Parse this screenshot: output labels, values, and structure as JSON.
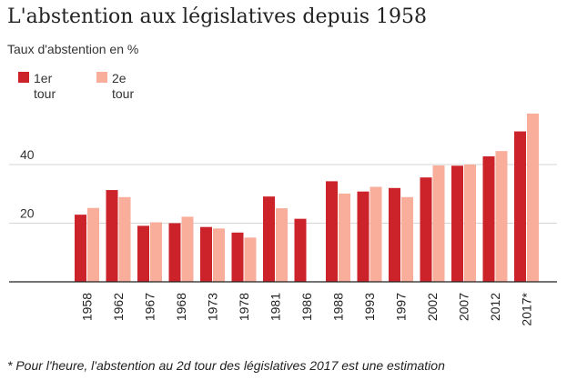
{
  "title": "L'abstention aux législatives depuis 1958",
  "subtitle": "Taux d'abstention en %",
  "footnote": "* Pour l'heure, l'abstention au 2d tour des législatives 2017 est une estimation",
  "colors": {
    "first_round": "#cc2229",
    "second_round": "#f9ae9b",
    "grid": "#d6d6d6",
    "axis": "#222222"
  },
  "chart_data": {
    "type": "bar",
    "categories": [
      "1958",
      "1962",
      "1967",
      "1968",
      "1973",
      "1978",
      "1981",
      "1986",
      "1988",
      "1993",
      "1997",
      "2002",
      "2007",
      "2012",
      "2017*"
    ],
    "series": [
      {
        "name": "1er tour",
        "values": [
          22.9,
          31.3,
          19.1,
          20.0,
          18.7,
          16.8,
          29.1,
          21.5,
          34.3,
          30.8,
          32.0,
          35.6,
          39.6,
          42.8,
          51.3
        ]
      },
      {
        "name": "2e tour",
        "values": [
          25.2,
          28.9,
          20.3,
          22.2,
          18.2,
          15.1,
          25.1,
          null,
          30.1,
          32.4,
          28.9,
          39.7,
          40.0,
          44.6,
          57.4
        ]
      }
    ],
    "ylim": [
      0,
      60
    ],
    "yticks": [
      20,
      40
    ],
    "ytick_labels": [
      "20",
      "40"
    ],
    "grid": true,
    "legend_position": "top-left"
  }
}
